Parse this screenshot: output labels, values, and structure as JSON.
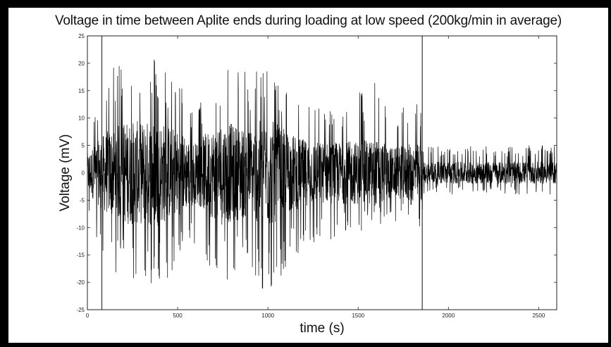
{
  "chart_data": {
    "type": "line",
    "title": "Voltage in time between Aplite ends during loading at low speed (200kg/min in average)",
    "xlabel": "time (s)",
    "ylabel": "Voltage (mV)",
    "xlim": [
      0,
      2600
    ],
    "ylim": [
      -25,
      25
    ],
    "xticks": [
      0,
      500,
      1000,
      1500,
      2000,
      2500
    ],
    "yticks": [
      -25,
      -20,
      -15,
      -10,
      -5,
      0,
      5,
      10,
      15,
      20,
      25
    ],
    "grid": false,
    "series_color": "#000000",
    "vertical_markers": [
      80,
      1855
    ],
    "envelope": {
      "t": [
        0,
        100,
        200,
        300,
        350,
        400,
        450,
        500,
        600,
        700,
        750,
        800,
        900,
        950,
        1000,
        1050,
        1100,
        1200,
        1300,
        1400,
        1500,
        1600,
        1700,
        1800,
        1850,
        1860,
        2000,
        2200,
        2400,
        2600
      ],
      "max": [
        8,
        17,
        22,
        20,
        21,
        22,
        19,
        17,
        12,
        16,
        22,
        20,
        18,
        20,
        22,
        20,
        16,
        13,
        12,
        13,
        15,
        17,
        11,
        16,
        13,
        5,
        5,
        5,
        5,
        5
      ],
      "min": [
        -8,
        -16,
        -20,
        -22,
        -22,
        -21,
        -20,
        -18,
        -13,
        -22,
        -21,
        -20,
        -18,
        -22,
        -23,
        -20,
        -18,
        -14,
        -13,
        -12,
        -11,
        -10,
        -9,
        -8,
        -11,
        -4,
        -4,
        -4,
        -4,
        -4
      ]
    }
  }
}
